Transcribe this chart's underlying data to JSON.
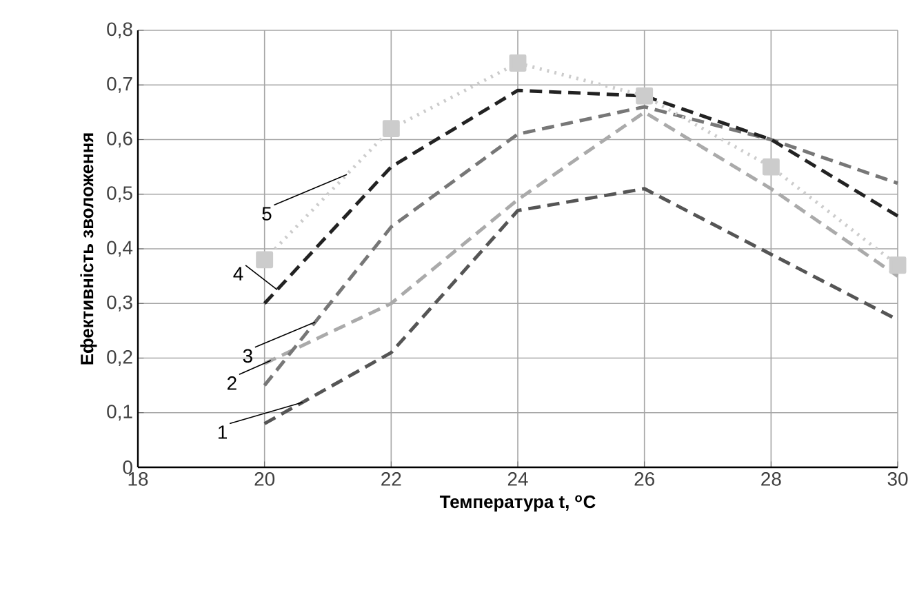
{
  "chart_data": {
    "type": "line",
    "xlabel": "Температура t, $^{o}$C",
    "ylabel": "Ефективність зволоження",
    "x": [
      20,
      22,
      24,
      26,
      28,
      30
    ],
    "series": [
      {
        "name": "1",
        "color": "#555555",
        "line_style": "dashed",
        "marker": "none",
        "values": [
          0.08,
          0.21,
          0.47,
          0.51,
          0.39,
          0.27
        ]
      },
      {
        "name": "2",
        "color": "#aaaaaa",
        "line_style": "dashed",
        "marker": "none",
        "values": [
          0.19,
          0.3,
          0.49,
          0.65,
          0.51,
          0.35
        ]
      },
      {
        "name": "3",
        "color": "#777777",
        "line_style": "dashed",
        "marker": "none",
        "values": [
          0.15,
          0.44,
          0.61,
          0.66,
          0.6,
          0.52
        ]
      },
      {
        "name": "4",
        "color": "#222222",
        "line_style": "dashed",
        "marker": "none",
        "values": [
          0.3,
          0.55,
          0.69,
          0.68,
          0.6,
          0.46
        ]
      },
      {
        "name": "5",
        "color": "#cccccc",
        "line_style": "dotted",
        "marker": "square",
        "values": [
          0.38,
          0.62,
          0.74,
          0.68,
          0.55,
          0.37
        ]
      }
    ],
    "xlim": [
      18,
      30
    ],
    "xticks": [
      18,
      20,
      22,
      24,
      26,
      28,
      30
    ],
    "ylim": [
      0,
      0.8
    ],
    "yticks": [
      0,
      {
        "value": 0.1,
        "label": "0,1"
      },
      {
        "value": 0.2,
        "label": "0,2"
      },
      {
        "value": 0.3,
        "label": "0,3"
      },
      {
        "value": 0.4,
        "label": "0,4"
      },
      {
        "value": 0.5,
        "label": "0,5"
      },
      {
        "value": 0.6,
        "label": "0,6"
      },
      {
        "value": 0.7,
        "label": "0,7"
      },
      {
        "value": 0.8,
        "label": "0,8"
      }
    ],
    "grid": true
  }
}
